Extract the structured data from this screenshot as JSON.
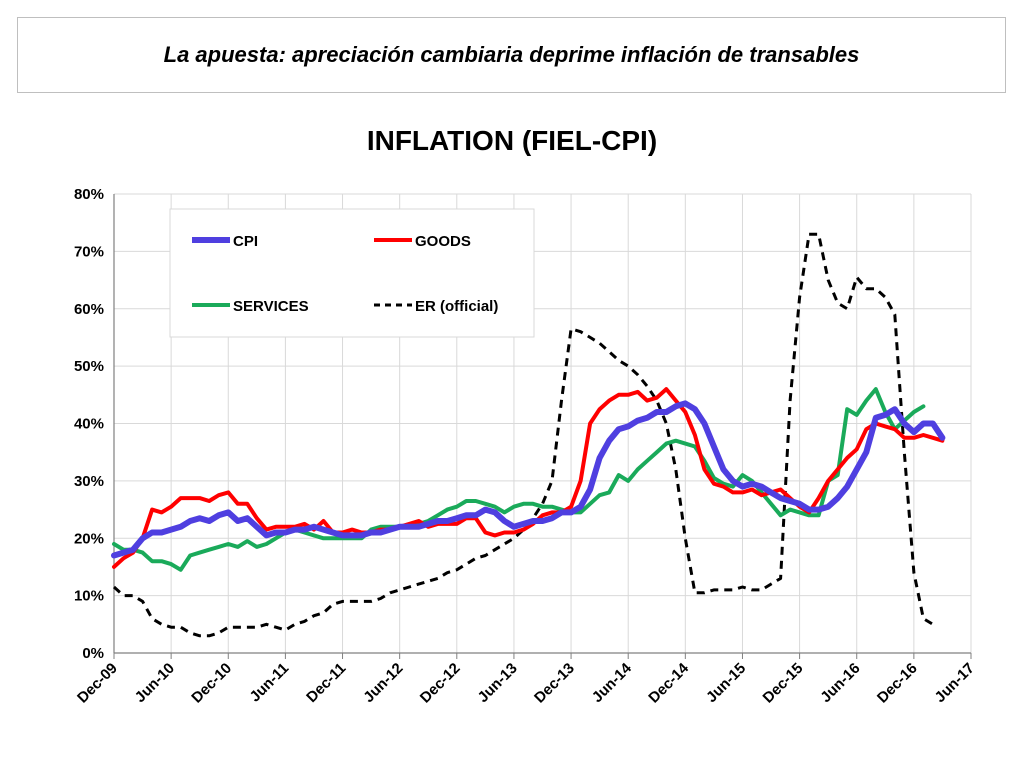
{
  "banner": {
    "text": "La apuesta: apreciación cambiaria deprime inflación de transables"
  },
  "chart_data": {
    "type": "line",
    "title": "INFLATION (FIEL-CPI)",
    "xlabel": "",
    "ylabel": "",
    "ylim": [
      0,
      0.8
    ],
    "yticks": [
      "0%",
      "10%",
      "20%",
      "30%",
      "40%",
      "50%",
      "60%",
      "70%",
      "80%"
    ],
    "xticks": [
      "Dec-09",
      "Jun-10",
      "Dec-10",
      "Jun-11",
      "Dec-11",
      "Jun-12",
      "Dec-12",
      "Jun-13",
      "Dec-13",
      "Jun-14",
      "Dec-14",
      "Jun-15",
      "Dec-15",
      "Jun-16",
      "Dec-16",
      "Jun-17"
    ],
    "x_start": "Dec-09",
    "x_end": "Jun-17",
    "grid": true,
    "legend_position": "top-left",
    "series": [
      {
        "name": "CPI",
        "color": "#4f3fe0",
        "width": 6,
        "dash": "",
        "values": [
          0.17,
          0.175,
          0.18,
          0.2,
          0.21,
          0.21,
          0.215,
          0.22,
          0.23,
          0.235,
          0.23,
          0.24,
          0.245,
          0.23,
          0.235,
          0.22,
          0.205,
          0.21,
          0.21,
          0.215,
          0.215,
          0.22,
          0.215,
          0.21,
          0.205,
          0.205,
          0.205,
          0.21,
          0.21,
          0.215,
          0.22,
          0.22,
          0.22,
          0.225,
          0.23,
          0.23,
          0.235,
          0.24,
          0.24,
          0.25,
          0.245,
          0.23,
          0.22,
          0.225,
          0.23,
          0.23,
          0.235,
          0.245,
          0.245,
          0.255,
          0.285,
          0.34,
          0.37,
          0.39,
          0.395,
          0.405,
          0.41,
          0.42,
          0.42,
          0.43,
          0.435,
          0.425,
          0.4,
          0.36,
          0.32,
          0.3,
          0.29,
          0.295,
          0.29,
          0.28,
          0.27,
          0.265,
          0.26,
          0.25,
          0.25,
          0.255,
          0.27,
          0.29,
          0.32,
          0.35,
          0.41,
          0.415,
          0.425,
          0.4,
          0.385,
          0.4,
          0.4,
          0.375
        ]
      },
      {
        "name": "GOODS",
        "color": "#ff0000",
        "width": 4,
        "dash": "",
        "values": [
          0.15,
          0.165,
          0.175,
          0.2,
          0.25,
          0.245,
          0.255,
          0.27,
          0.27,
          0.27,
          0.265,
          0.275,
          0.28,
          0.26,
          0.26,
          0.235,
          0.215,
          0.22,
          0.22,
          0.22,
          0.225,
          0.215,
          0.23,
          0.21,
          0.21,
          0.215,
          0.21,
          0.21,
          0.215,
          0.215,
          0.22,
          0.225,
          0.23,
          0.22,
          0.225,
          0.225,
          0.225,
          0.235,
          0.235,
          0.21,
          0.205,
          0.21,
          0.21,
          0.215,
          0.225,
          0.24,
          0.245,
          0.245,
          0.255,
          0.3,
          0.4,
          0.425,
          0.44,
          0.45,
          0.45,
          0.455,
          0.44,
          0.445,
          0.46,
          0.44,
          0.42,
          0.38,
          0.32,
          0.295,
          0.29,
          0.28,
          0.28,
          0.285,
          0.275,
          0.28,
          0.285,
          0.27,
          0.255,
          0.245,
          0.27,
          0.3,
          0.32,
          0.34,
          0.355,
          0.39,
          0.4,
          0.395,
          0.39,
          0.375,
          0.375,
          0.38,
          0.375,
          0.37
        ]
      },
      {
        "name": "SERVICES",
        "color": "#1aaa5a",
        "width": 4,
        "dash": "",
        "values": [
          0.19,
          0.18,
          0.18,
          0.175,
          0.16,
          0.16,
          0.155,
          0.145,
          0.17,
          0.175,
          0.18,
          0.185,
          0.19,
          0.185,
          0.195,
          0.185,
          0.19,
          0.2,
          0.21,
          0.215,
          0.21,
          0.205,
          0.2,
          0.2,
          0.2,
          0.2,
          0.2,
          0.215,
          0.22,
          0.22,
          0.22,
          0.22,
          0.225,
          0.23,
          0.24,
          0.25,
          0.255,
          0.265,
          0.265,
          0.26,
          0.255,
          0.245,
          0.255,
          0.26,
          0.26,
          0.255,
          0.255,
          0.25,
          0.245,
          0.245,
          0.26,
          0.275,
          0.28,
          0.31,
          0.3,
          0.32,
          0.335,
          0.35,
          0.365,
          0.37,
          0.365,
          0.36,
          0.335,
          0.305,
          0.295,
          0.29,
          0.31,
          0.3,
          0.28,
          0.26,
          0.24,
          0.25,
          0.245,
          0.24,
          0.24,
          0.3,
          0.31,
          0.425,
          0.415,
          0.44,
          0.46,
          0.42,
          0.39,
          0.405,
          0.42,
          0.43
        ]
      },
      {
        "name": "ER (official)",
        "color": "#000000",
        "width": 3,
        "dash": "8,6",
        "values": [
          0.115,
          0.1,
          0.1,
          0.09,
          0.06,
          0.05,
          0.045,
          0.045,
          0.035,
          0.03,
          0.03,
          0.035,
          0.045,
          0.045,
          0.045,
          0.045,
          0.05,
          0.045,
          0.04,
          0.05,
          0.055,
          0.065,
          0.07,
          0.085,
          0.09,
          0.09,
          0.09,
          0.09,
          0.095,
          0.105,
          0.11,
          0.115,
          0.12,
          0.125,
          0.13,
          0.14,
          0.145,
          0.155,
          0.165,
          0.17,
          0.18,
          0.19,
          0.2,
          0.215,
          0.235,
          0.26,
          0.3,
          0.44,
          0.565,
          0.56,
          0.55,
          0.54,
          0.525,
          0.51,
          0.5,
          0.485,
          0.465,
          0.44,
          0.4,
          0.32,
          0.2,
          0.105,
          0.105,
          0.11,
          0.11,
          0.11,
          0.115,
          0.11,
          0.11,
          0.12,
          0.13,
          0.44,
          0.62,
          0.73,
          0.73,
          0.65,
          0.61,
          0.6,
          0.655,
          0.635,
          0.635,
          0.62,
          0.59,
          0.35,
          0.14,
          0.06,
          0.05
        ]
      }
    ]
  }
}
